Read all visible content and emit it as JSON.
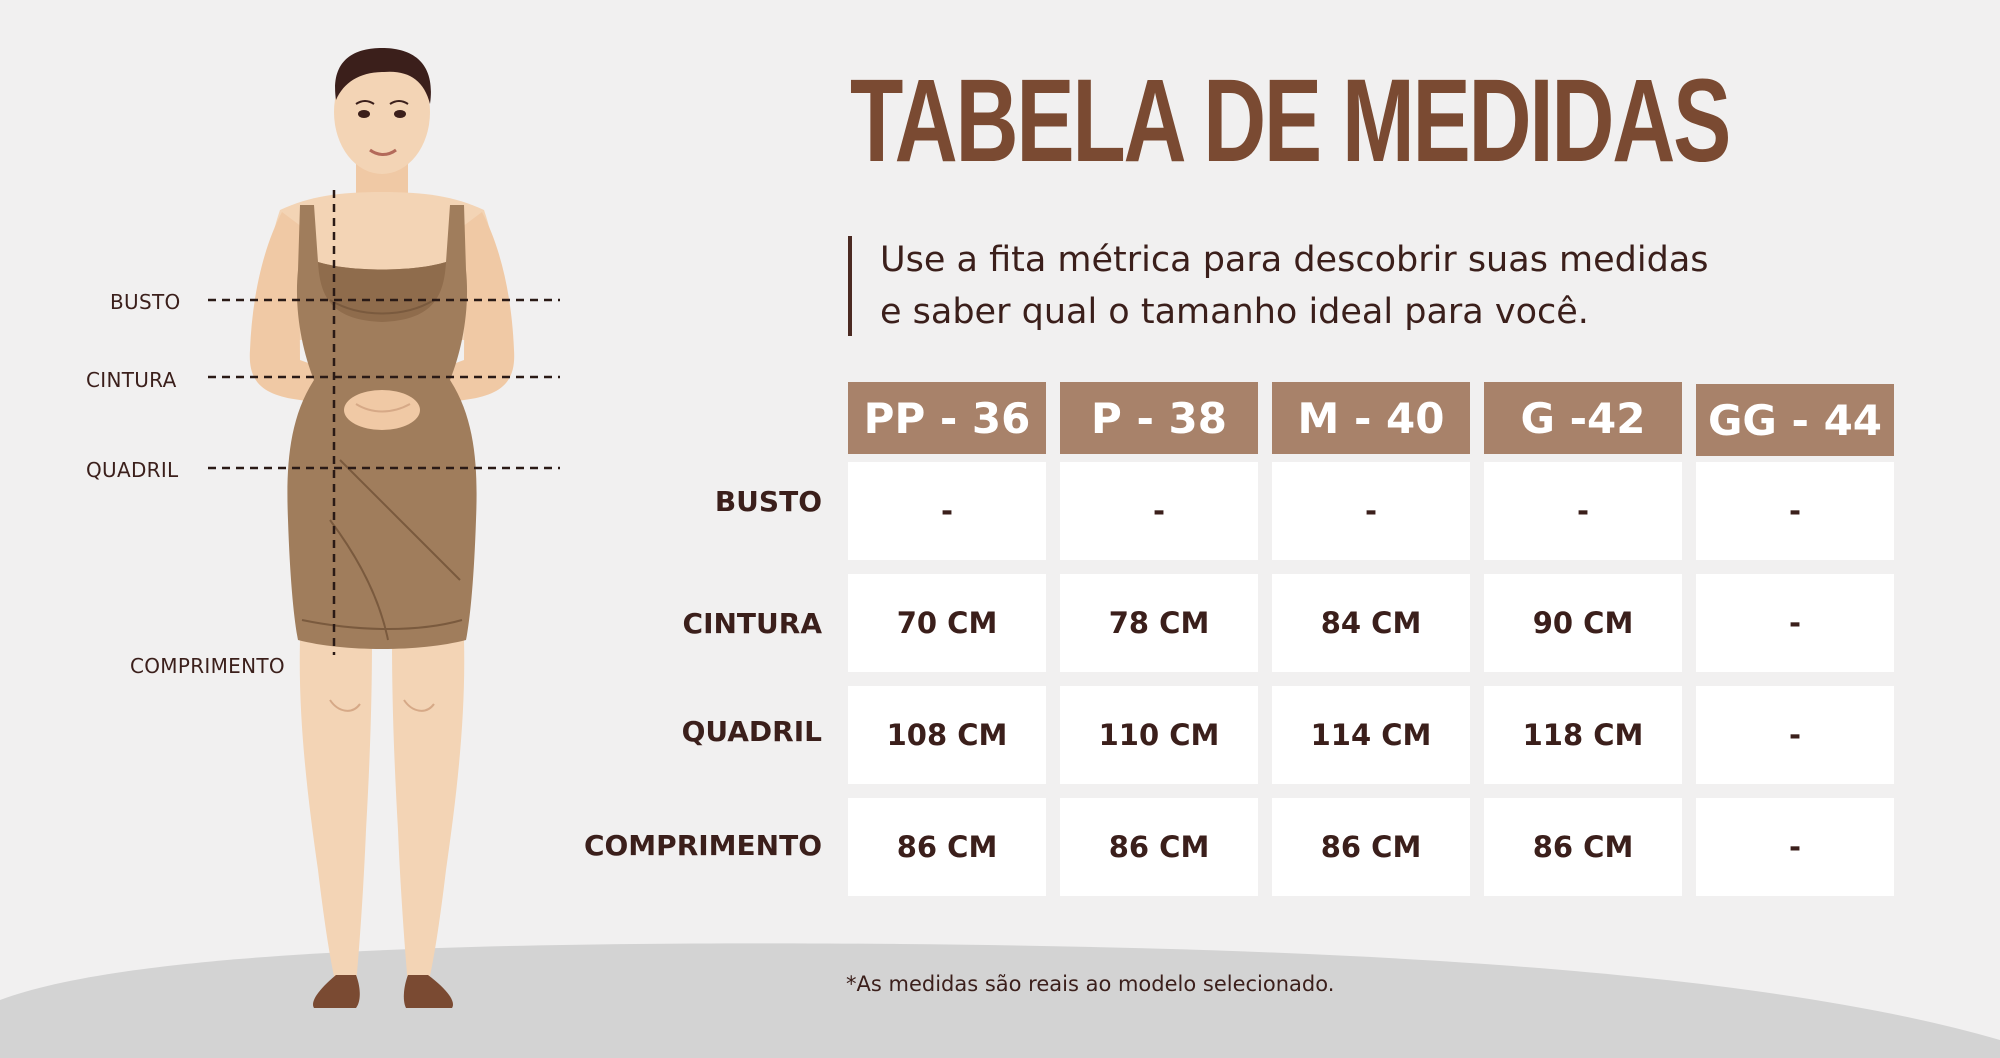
{
  "title": "TABELA DE MEDIDAS",
  "subtitle": {
    "line1": "Use a fita métrica para descobrir suas medidas",
    "line2": "e saber qual o tamanho ideal para você."
  },
  "figure_labels": {
    "busto": "BUSTO",
    "cintura": "CINTURA",
    "quadril": "QUADRIL",
    "comprimento": "COMPRIMENTO"
  },
  "table": {
    "sizes": [
      "PP - 36",
      "P - 38",
      "M - 40",
      "G -42",
      "GG - 44"
    ],
    "rows": [
      {
        "label": "BUSTO",
        "values": [
          "-",
          "-",
          "-",
          "-",
          "-"
        ]
      },
      {
        "label": "CINTURA",
        "values": [
          "70 CM",
          "78 CM",
          "84 CM",
          "90 CM",
          "-"
        ]
      },
      {
        "label": "QUADRIL",
        "values": [
          "108 CM",
          "110 CM",
          "114 CM",
          "118 CM",
          "-"
        ]
      },
      {
        "label": "COMPRIMENTO",
        "values": [
          "86 CM",
          "86 CM",
          "86 CM",
          "86 CM",
          "-"
        ]
      }
    ]
  },
  "footnote": "*As medidas são reais ao modelo selecionado.",
  "colors": {
    "header_fill": "#a8826a",
    "title": "#7a4a32",
    "text": "#3b1f1b",
    "dress": "#a07d5c",
    "skin": "#f3d4b5",
    "background": "#f1f0f0",
    "floor": "#d3d3d3"
  }
}
